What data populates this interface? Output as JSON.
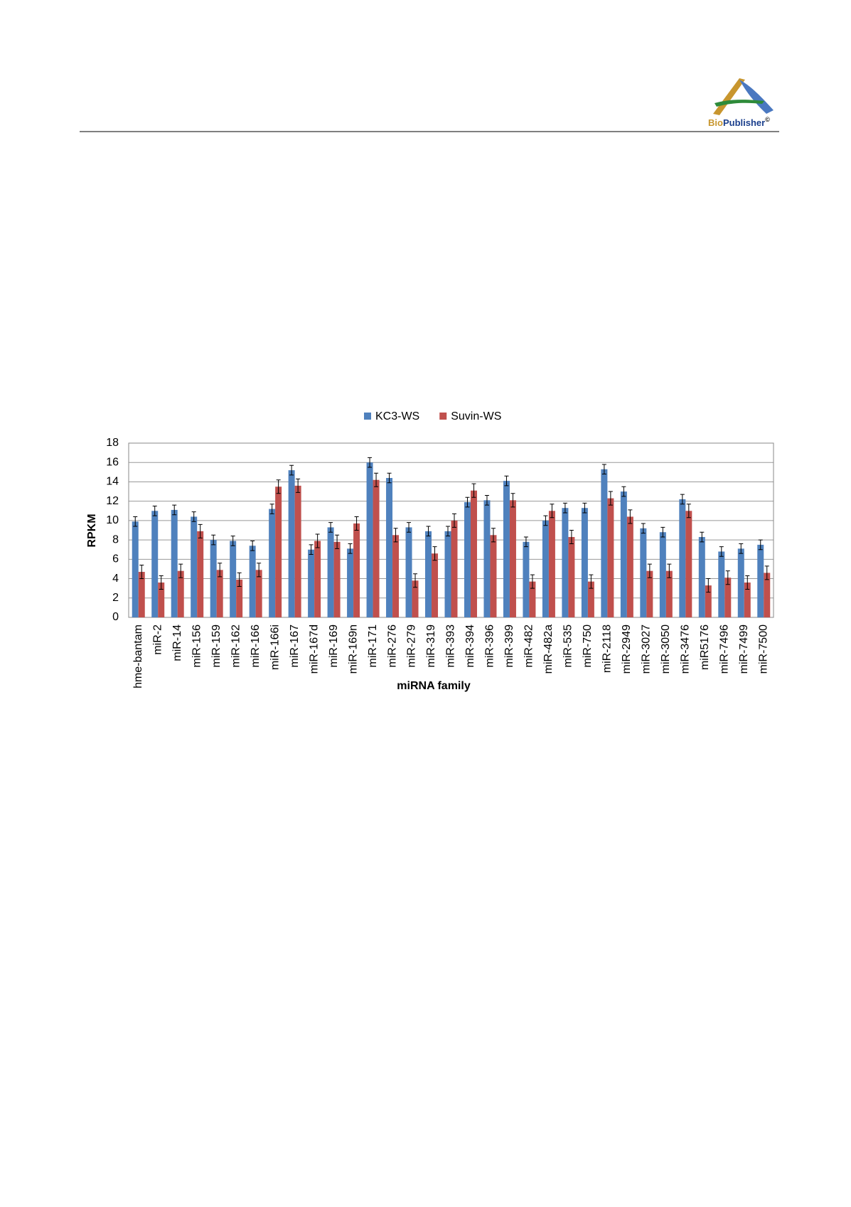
{
  "header": {
    "logo": [
      "Bio",
      "Publisher",
      "©"
    ]
  },
  "chart_data": {
    "type": "bar",
    "x_label": "miRNA family",
    "y_label": "RPKM",
    "categories": [
      "hme-bantam",
      "miR-2",
      "miR-14",
      "miR-156",
      "miR-159",
      "miR-162",
      "miR-166",
      "miR-166i",
      "miR-167",
      "miR-167d",
      "miR-169",
      "miR-169n",
      "miR-171",
      "miR-276",
      "miR-279",
      "miR-319",
      "miR-393",
      "miR-394",
      "miR-396",
      "miR-399",
      "miR-482",
      "miR-482a",
      "miR-535",
      "miR-750",
      "miR-2118",
      "miR-2949",
      "miR-3027",
      "miR-3050",
      "miR-3476",
      "miR5176",
      "miR-7496",
      "miR-7499",
      "miR-7500"
    ],
    "series": [
      {
        "name": "KC3-WS",
        "color": "#4f81bd",
        "values": [
          9.9,
          11.0,
          11.1,
          10.4,
          8.0,
          7.9,
          7.4,
          11.2,
          15.2,
          7.0,
          9.3,
          7.1,
          16.0,
          14.4,
          9.3,
          8.9,
          8.9,
          11.9,
          12.1,
          14.1,
          7.8,
          10.0,
          11.3,
          11.3,
          15.3,
          13.0,
          9.2,
          8.8,
          12.2,
          8.3,
          6.8,
          7.1,
          7.5
        ],
        "errors": [
          0.5,
          0.5,
          0.5,
          0.5,
          0.5,
          0.5,
          0.5,
          0.5,
          0.5,
          0.5,
          0.5,
          0.5,
          0.5,
          0.5,
          0.5,
          0.5,
          0.5,
          0.5,
          0.5,
          0.5,
          0.5,
          0.5,
          0.5,
          0.5,
          0.5,
          0.5,
          0.5,
          0.5,
          0.5,
          0.5,
          0.5,
          0.5,
          0.5
        ]
      },
      {
        "name": "Suvin-WS",
        "color": "#c0504d",
        "values": [
          4.7,
          3.6,
          4.8,
          8.9,
          4.9,
          3.9,
          4.9,
          13.5,
          13.6,
          7.9,
          7.8,
          9.7,
          14.2,
          8.5,
          3.8,
          6.6,
          10.0,
          13.1,
          8.5,
          12.1,
          3.7,
          11.0,
          8.3,
          3.7,
          12.3,
          10.4,
          4.8,
          4.8,
          11.0,
          3.3,
          4.1,
          3.6,
          4.6
        ],
        "errors": [
          0.7,
          0.7,
          0.7,
          0.7,
          0.7,
          0.7,
          0.7,
          0.7,
          0.7,
          0.7,
          0.7,
          0.7,
          0.7,
          0.7,
          0.7,
          0.7,
          0.7,
          0.7,
          0.7,
          0.7,
          0.7,
          0.7,
          0.7,
          0.7,
          0.7,
          0.7,
          0.7,
          0.7,
          0.7,
          0.7,
          0.7,
          0.7,
          0.7
        ]
      }
    ],
    "ylim": [
      0,
      18
    ],
    "yticks": [
      0,
      2,
      4,
      6,
      8,
      10,
      12,
      14,
      16,
      18
    ],
    "grid": true,
    "legend": "top"
  }
}
